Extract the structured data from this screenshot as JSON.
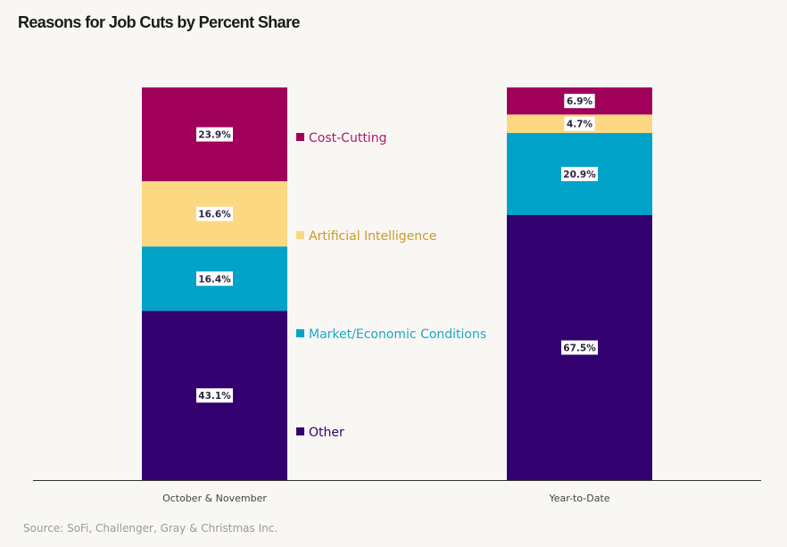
{
  "chart_data": {
    "type": "stacked-bar",
    "title": "Reasons for Job Cuts by Percent Share",
    "source": "Source: SoFi, Challenger, Gray & Christmas Inc.",
    "categories": [
      "October & November",
      "Year-to-Date"
    ],
    "ylim": [
      0,
      100
    ],
    "series": [
      {
        "name": "Other",
        "color": "#33006f",
        "label_color": "#33006f",
        "values": [
          43.1,
          67.5
        ],
        "labels": [
          "43.1%",
          "67.5%"
        ]
      },
      {
        "name": "Market/Economic Conditions",
        "color": "#00a3c7",
        "label_color": "#18a9cb",
        "values": [
          16.4,
          20.9
        ],
        "labels": [
          "16.4%",
          "20.9%"
        ]
      },
      {
        "name": "Artificial Intelligence",
        "color": "#fdd882",
        "label_color": "#c79c2c",
        "values": [
          16.6,
          4.7
        ],
        "labels": [
          "16.6%",
          "4.7%"
        ]
      },
      {
        "name": "Cost-Cutting",
        "color": "#a0005a",
        "label_color": "#b01a6c",
        "values": [
          23.9,
          6.9
        ],
        "labels": [
          "23.9%",
          "6.9%"
        ]
      }
    ],
    "legend_placement": "between bars"
  }
}
